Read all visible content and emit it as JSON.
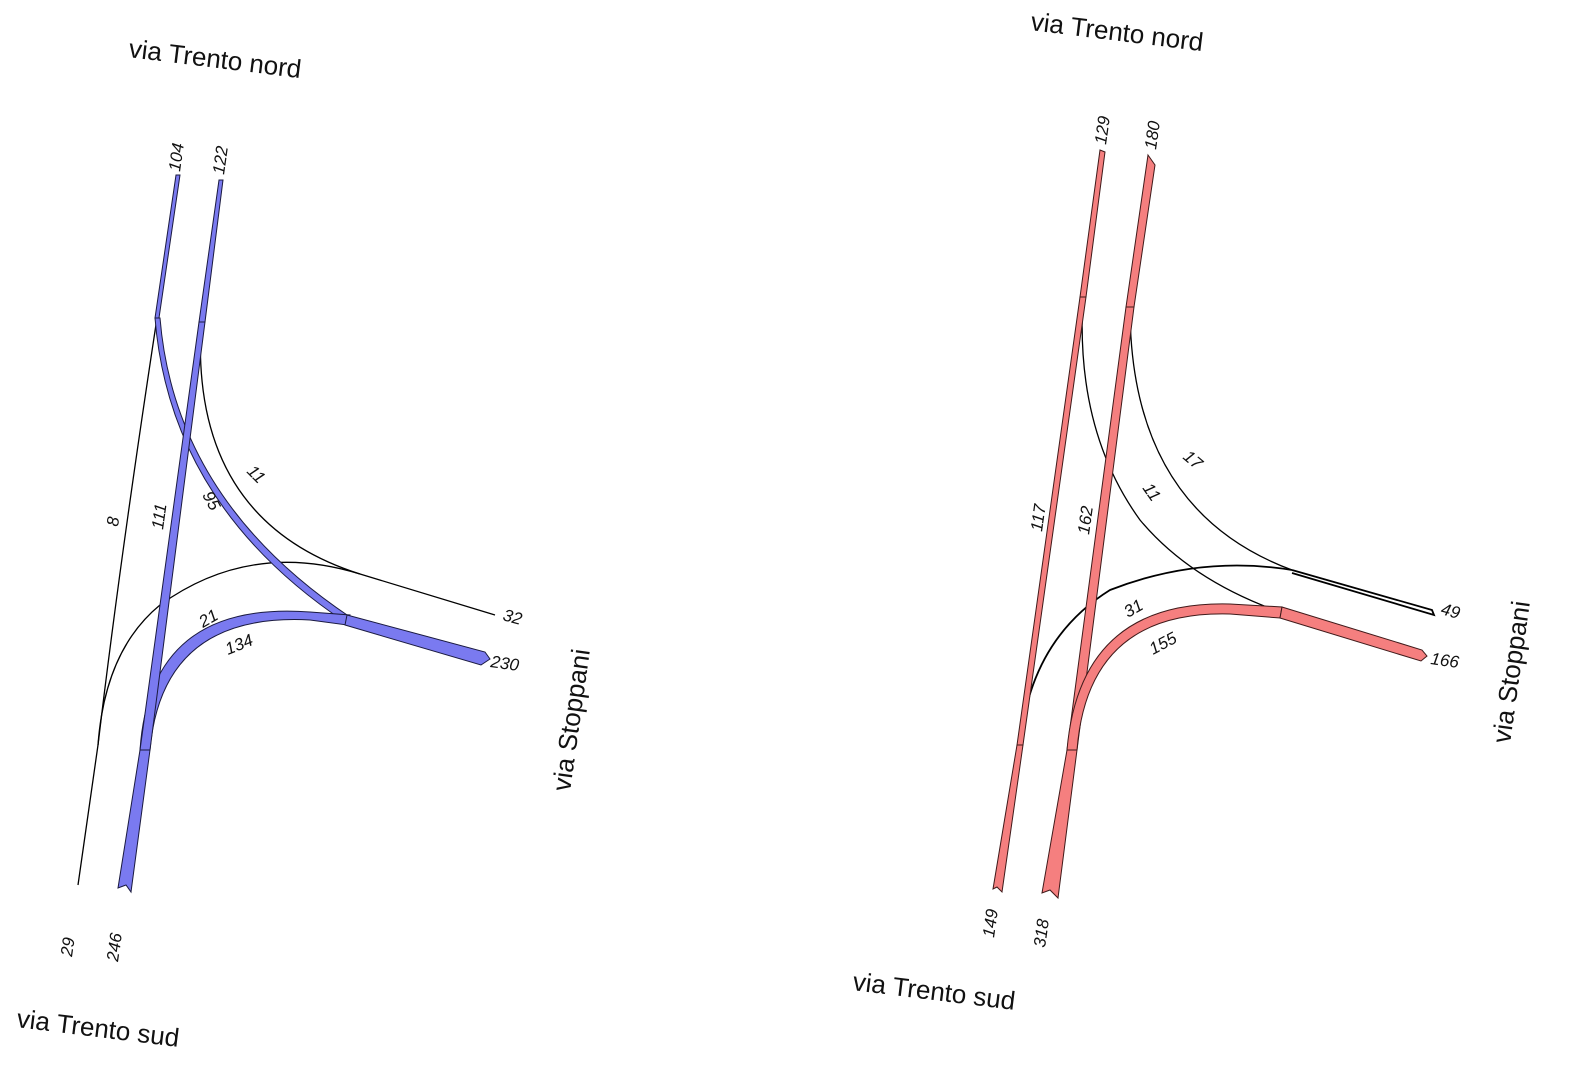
{
  "colors": {
    "left_flow": "#7a7af0",
    "right_flow": "#f57f7f",
    "line": "#000000"
  },
  "left": {
    "labels": {
      "north": "via Trento nord",
      "south": "via Trento sud",
      "east": "via Stoppani"
    },
    "values": {
      "north_in": "104",
      "north_out": "122",
      "south_in": "29",
      "south_out": "246",
      "east_in": "32",
      "east_out": "230",
      "n_to_s": "8",
      "s_to_n": "111",
      "n_to_e": "95",
      "e_to_n": "11",
      "e_to_s": "21",
      "s_to_e": "134"
    }
  },
  "right": {
    "labels": {
      "north": "via Trento nord",
      "south": "via Trento sud",
      "east": "via Stoppani"
    },
    "values": {
      "north_in": "129",
      "north_out": "180",
      "south_in": "149",
      "south_out": "318",
      "east_in": "49",
      "east_out": "166",
      "n_to_s": "117",
      "s_to_n": "162",
      "n_to_e": "11",
      "e_to_n": "17",
      "e_to_s": "31",
      "s_to_e": "155"
    }
  }
}
